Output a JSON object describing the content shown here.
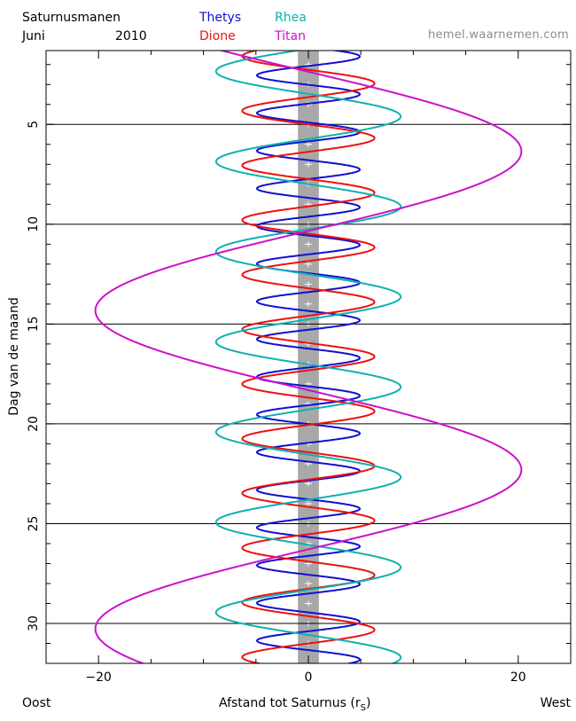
{
  "header": {
    "title": "Saturnusmanen",
    "month": "Juni",
    "year": "2010",
    "website": "hemel.waarnemen.com"
  },
  "footer": {
    "left": "Oost",
    "right": "West",
    "xlabel_main": "Afstand tot Saturnus (r",
    "xlabel_sub": "S",
    "xlabel_end": ")"
  },
  "colors": {
    "Thetys": "#1010d0",
    "Dione": "#ee1010",
    "Rhea": "#10b0b0",
    "Titan": "#cc10cc",
    "saturn_band": "#a8a8a8"
  },
  "chart_data": {
    "type": "line",
    "xlabel": "Afstand tot Saturnus (rS)",
    "ylabel": "Dag van de maand",
    "xlim": [
      -25,
      25
    ],
    "ylim": [
      32,
      1.3
    ],
    "x_ticks": [
      -20,
      0,
      20
    ],
    "x_tick_labels": [
      "−20",
      "0",
      "20"
    ],
    "y_ticks": [
      5,
      10,
      15,
      20,
      25,
      30
    ],
    "y_tick_labels": [
      "5",
      "10",
      "15",
      "20",
      "25",
      "30"
    ],
    "gridlines_y": [
      5,
      10,
      15,
      20,
      25,
      30
    ],
    "saturn_band": [
      -1,
      1
    ],
    "series": [
      {
        "name": "Thetys",
        "amplitude": 4.9,
        "period_days": 1.888,
        "peak_day": 1.6
      },
      {
        "name": "Dione",
        "amplitude": 6.3,
        "period_days": 2.737,
        "peak_day": 2.95
      },
      {
        "name": "Rhea",
        "amplitude": 8.8,
        "period_days": 4.518,
        "peak_day": 4.6
      },
      {
        "name": "Titan",
        "amplitude": 20.3,
        "period_days": 15.95,
        "peak_day": 6.35
      }
    ]
  }
}
